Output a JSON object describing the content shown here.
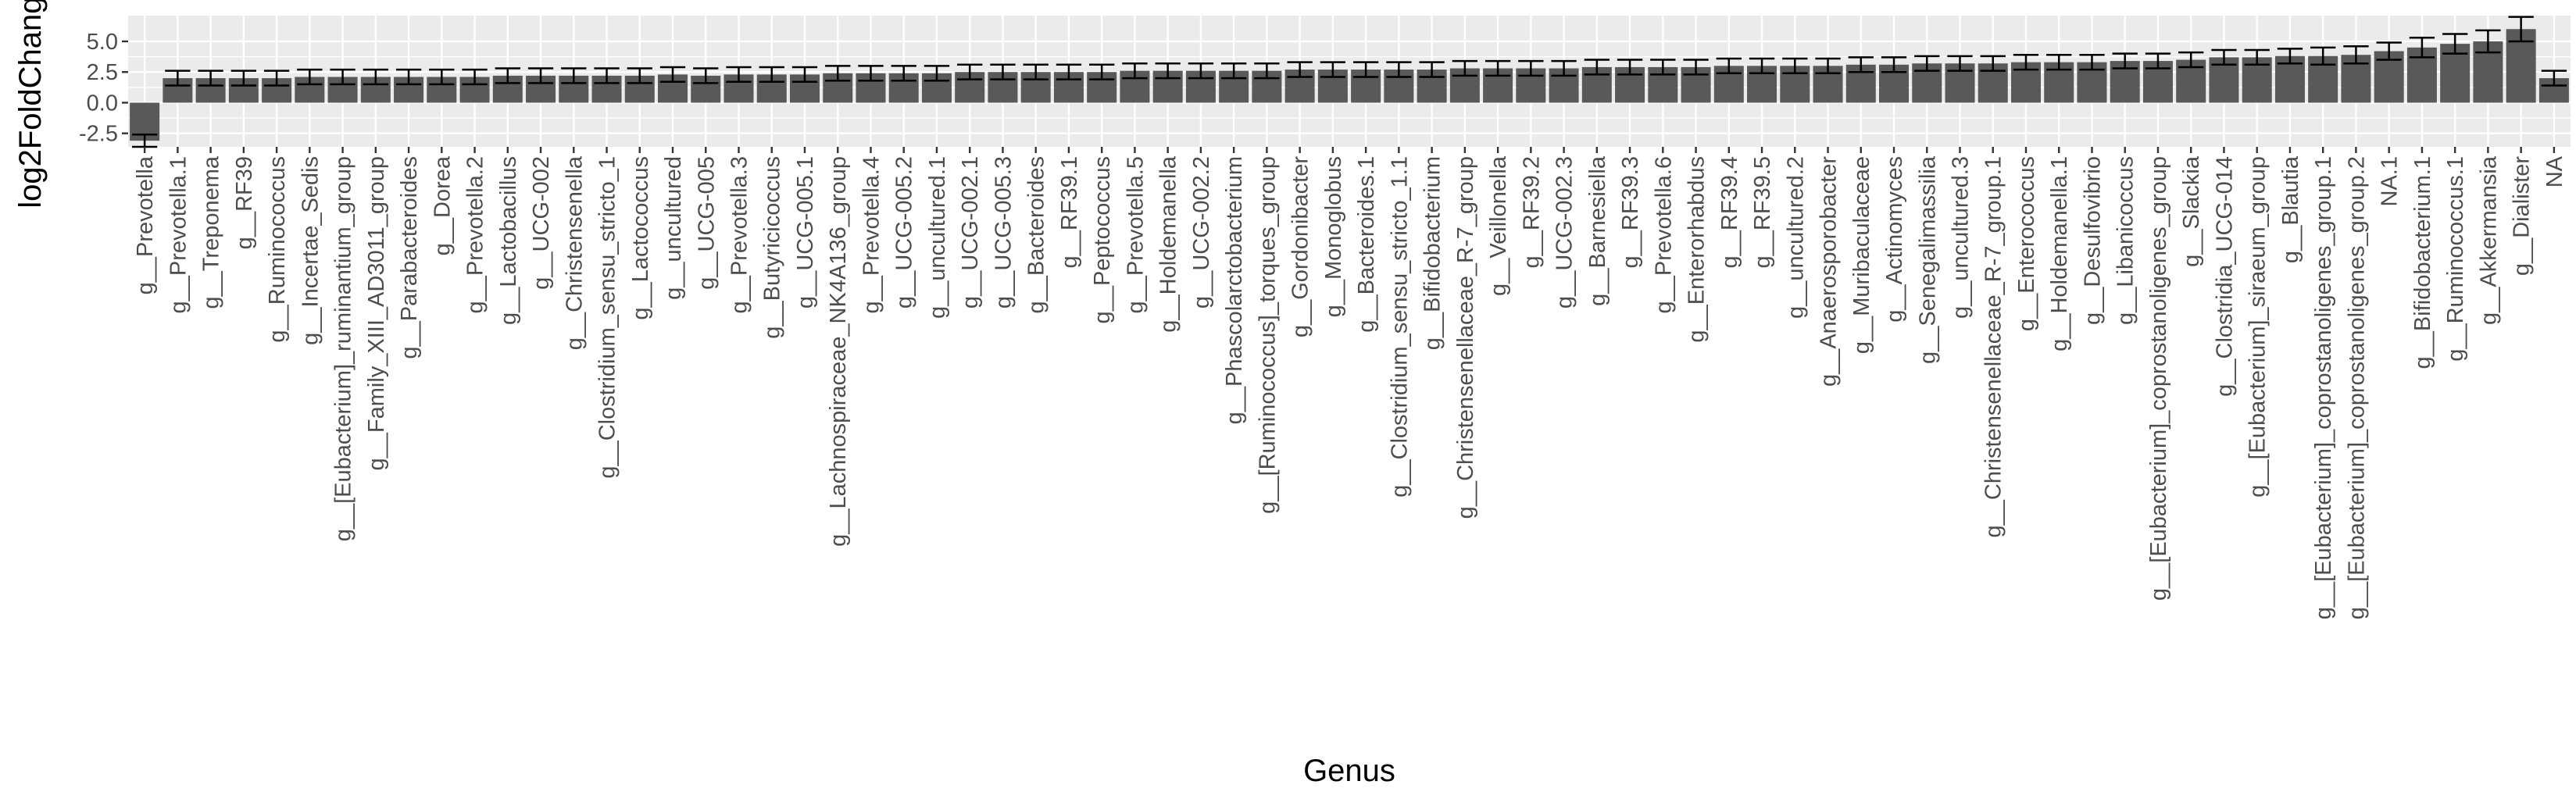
{
  "colors": {
    "panel_background": "#ebebeb",
    "grid_major": "#ffffff",
    "bar_fill": "#595959",
    "error_bar": "#000000",
    "tick_text": "#4d4d4d",
    "title_text": "#000000"
  },
  "chart_data": {
    "type": "bar",
    "xlabel": "Genus",
    "ylabel": "log2FoldChange",
    "ylim": [
      -3.6,
      7.1
    ],
    "yticks": [
      -2.5,
      0.0,
      2.5,
      5.0
    ],
    "ytick_labels": [
      "-2.5",
      "0.0",
      "2.5",
      "5.0"
    ],
    "grid": true,
    "legend": "none",
    "categories": [
      "g__Prevotella",
      "g__Prevotella.1",
      "g__Treponema",
      "g__RF39",
      "g__Ruminococcus",
      "g__Incertae_Sedis",
      "g__[Eubacterium]_ruminantium_group",
      "g__Family_XIII_AD3011_group",
      "g__Parabacteroides",
      "g__Dorea",
      "g__Prevotella.2",
      "g__Lactobacillus",
      "g__UCG-002",
      "g__Christensenella",
      "g__Clostridium_sensu_stricto_1",
      "g__Lactococcus",
      "g__uncultured",
      "g__UCG-005",
      "g__Prevotella.3",
      "g__Butyricicoccus",
      "g__UCG-005.1",
      "g__Lachnospiraceae_NK4A136_group",
      "g__Prevotella.4",
      "g__UCG-005.2",
      "g__uncultured.1",
      "g__UCG-002.1",
      "g__UCG-005.3",
      "g__Bacteroides",
      "g__RF39.1",
      "g__Peptococcus",
      "g__Prevotella.5",
      "g__Holdemanella",
      "g__UCG-002.2",
      "g__Phascolarctobacterium",
      "g__[Ruminococcus]_torques_group",
      "g__Gordonibacter",
      "g__Monoglobus",
      "g__Bacteroides.1",
      "g__Clostridium_sensu_stricto_1.1",
      "g__Bifidobacterium",
      "g__Christensenellaceae_R-7_group",
      "g__Veillonella",
      "g__RF39.2",
      "g__UCG-002.3",
      "g__Barnesiella",
      "g__RF39.3",
      "g__Prevotella.6",
      "g__Enterorhabdus",
      "g__RF39.4",
      "g__RF39.5",
      "g__uncultured.2",
      "g__Anaerosporobacter",
      "g__Muribaculaceae",
      "g__Actinomyces",
      "g__Senegalimassilia",
      "g__uncultured.3",
      "g__Christensenellaceae_R-7_group.1",
      "g__Enterococcus",
      "g__Holdemanella.1",
      "g__Desulfovibrio",
      "g__Libanicoccus",
      "g__[Eubacterium]_coprostanoligenes_group",
      "g__Slackia",
      "g__Clostridia_UCG-014",
      "g__[Eubacterium]_siraeum_group",
      "g__Blautia",
      "g__[Eubacterium]_coprostanoligenes_group.1",
      "g__[Eubacterium]_coprostanoligenes_group.2",
      "NA.1",
      "g__Bifidobacterium.1",
      "g__Ruminococcus.1",
      "g__Akkermansia",
      "g__Dialister",
      "NA"
    ],
    "values": [
      -3.1,
      2.0,
      2.0,
      2.0,
      2.0,
      2.1,
      2.1,
      2.1,
      2.1,
      2.1,
      2.1,
      2.2,
      2.2,
      2.2,
      2.2,
      2.2,
      2.3,
      2.2,
      2.3,
      2.3,
      2.3,
      2.4,
      2.4,
      2.4,
      2.4,
      2.5,
      2.5,
      2.5,
      2.5,
      2.5,
      2.6,
      2.6,
      2.6,
      2.6,
      2.6,
      2.7,
      2.7,
      2.7,
      2.7,
      2.7,
      2.8,
      2.8,
      2.8,
      2.8,
      2.9,
      2.9,
      2.9,
      2.9,
      3.0,
      3.0,
      3.0,
      3.0,
      3.1,
      3.1,
      3.2,
      3.2,
      3.2,
      3.3,
      3.3,
      3.3,
      3.4,
      3.4,
      3.5,
      3.7,
      3.7,
      3.8,
      3.8,
      3.9,
      4.2,
      4.5,
      4.8,
      5.0,
      6.0,
      2.0
    ],
    "errors": [
      0.5,
      0.6,
      0.6,
      0.6,
      0.6,
      0.6,
      0.6,
      0.6,
      0.6,
      0.6,
      0.6,
      0.6,
      0.6,
      0.6,
      0.6,
      0.6,
      0.6,
      0.6,
      0.6,
      0.6,
      0.6,
      0.6,
      0.6,
      0.6,
      0.6,
      0.6,
      0.6,
      0.6,
      0.6,
      0.6,
      0.6,
      0.6,
      0.6,
      0.6,
      0.6,
      0.6,
      0.6,
      0.6,
      0.6,
      0.6,
      0.6,
      0.6,
      0.6,
      0.6,
      0.6,
      0.6,
      0.6,
      0.6,
      0.6,
      0.6,
      0.6,
      0.6,
      0.6,
      0.6,
      0.6,
      0.6,
      0.6,
      0.6,
      0.6,
      0.6,
      0.6,
      0.6,
      0.6,
      0.6,
      0.6,
      0.6,
      0.7,
      0.7,
      0.7,
      0.8,
      0.8,
      0.9,
      1.0,
      0.6
    ]
  }
}
